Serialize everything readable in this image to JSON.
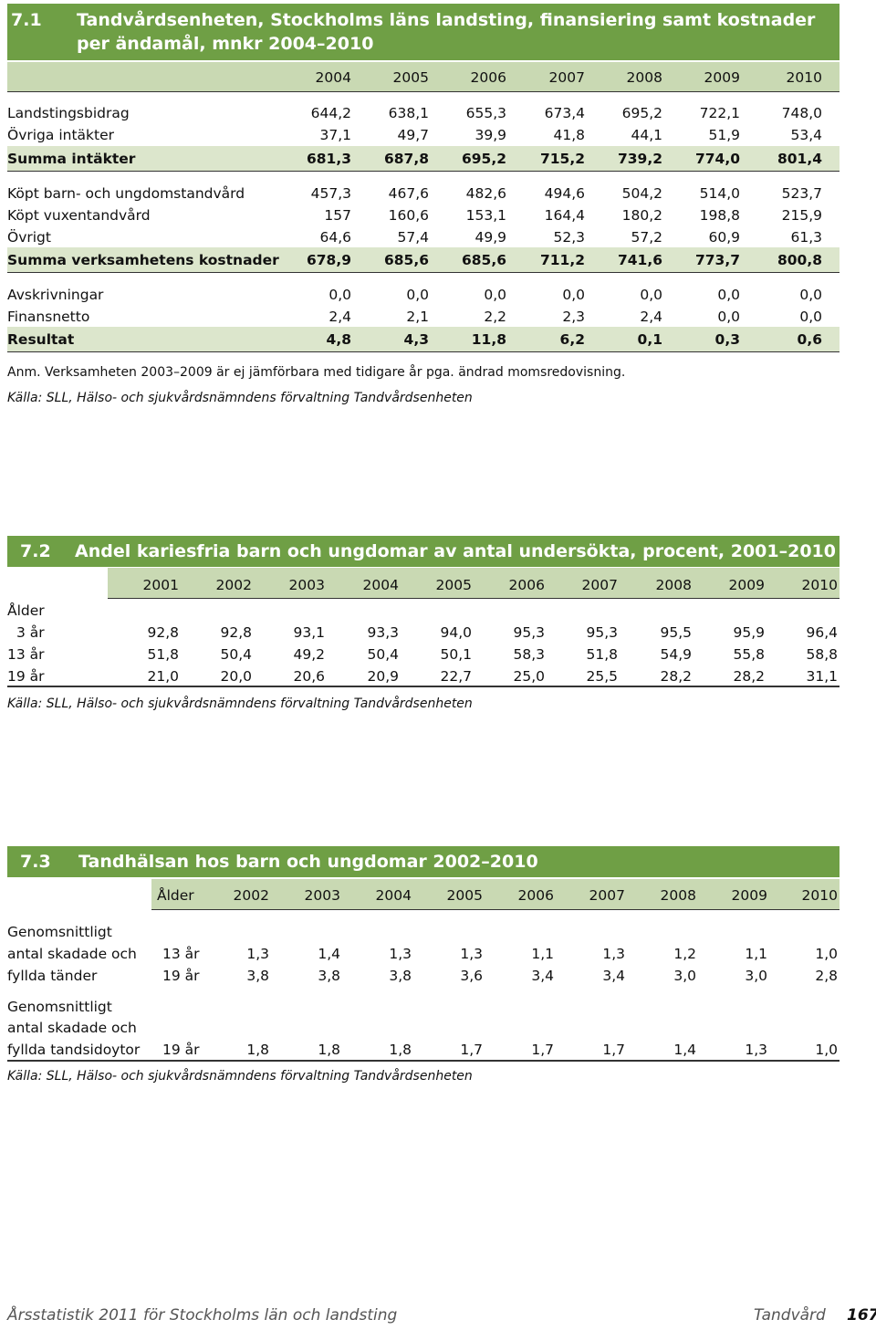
{
  "table1": {
    "number": "7.1",
    "title_line1": "Tandvårdsenheten, Stockholms läns landsting, finansiering samt kostnader",
    "title_line2": "per ändamål, mnkr 2004–2010",
    "years": [
      "2004",
      "2005",
      "2006",
      "2007",
      "2008",
      "2009",
      "2010"
    ],
    "rows": [
      {
        "label": "Landstingsbidrag",
        "values": [
          "644,2",
          "638,1",
          "655,3",
          "673,4",
          "695,2",
          "722,1",
          "748,0"
        ],
        "kind": "normal"
      },
      {
        "label": "Övriga intäkter",
        "values": [
          "37,1",
          "49,7",
          "39,9",
          "41,8",
          "44,1",
          "51,9",
          "53,4"
        ],
        "kind": "normal"
      },
      {
        "label": "Summa intäkter",
        "values": [
          "681,3",
          "687,8",
          "695,2",
          "715,2",
          "739,2",
          "774,0",
          "801,4"
        ],
        "kind": "sum"
      },
      {
        "label": "Köpt barn- och ungdomstandvård",
        "values": [
          "457,3",
          "467,6",
          "482,6",
          "494,6",
          "504,2",
          "514,0",
          "523,7"
        ],
        "kind": "normal"
      },
      {
        "label": "Köpt vuxentandvård",
        "values": [
          "157",
          "160,6",
          "153,1",
          "164,4",
          "180,2",
          "198,8",
          "215,9"
        ],
        "kind": "normal"
      },
      {
        "label": "Övrigt",
        "values": [
          "64,6",
          "57,4",
          "49,9",
          "52,3",
          "57,2",
          "60,9",
          "61,3"
        ],
        "kind": "normal"
      },
      {
        "label": "Summa verksamhetens kostnader",
        "values": [
          "678,9",
          "685,6",
          "685,6",
          "711,2",
          "741,6",
          "773,7",
          "800,8"
        ],
        "kind": "sum"
      },
      {
        "label": "Avskrivningar",
        "values": [
          "0,0",
          "0,0",
          "0,0",
          "0,0",
          "0,0",
          "0,0",
          "0,0"
        ],
        "kind": "normal"
      },
      {
        "label": "Finansnetto",
        "values": [
          "2,4",
          "2,1",
          "2,2",
          "2,3",
          "2,4",
          "0,0",
          "0,0"
        ],
        "kind": "normal"
      },
      {
        "label": "Resultat",
        "values": [
          "4,8",
          "4,3",
          "11,8",
          "6,2",
          "0,1",
          "0,3",
          "0,6"
        ],
        "kind": "sum"
      }
    ],
    "note": "Anm. Verksamheten 2003–2009 är ej jämförbara med tidigare år pga. ändrad momsredovisning.",
    "source": "Källa: SLL, Hälso- och sjukvårdsnämndens förvaltning Tandvårdsenheten"
  },
  "table2": {
    "number": "7.2",
    "title": "Andel kariesfria barn och ungdomar av antal undersökta, procent, 2001–2010",
    "years": [
      "2001",
      "2002",
      "2003",
      "2004",
      "2005",
      "2006",
      "2007",
      "2008",
      "2009",
      "2010"
    ],
    "group_label": "Ålder",
    "rows": [
      {
        "label": "3 år",
        "values": [
          "92,8",
          "92,8",
          "93,1",
          "93,3",
          "94,0",
          "95,3",
          "95,3",
          "95,5",
          "95,9",
          "96,4"
        ]
      },
      {
        "label": "13 år",
        "values": [
          "51,8",
          "50,4",
          "49,2",
          "50,4",
          "50,1",
          "58,3",
          "51,8",
          "54,9",
          "55,8",
          "58,8"
        ]
      },
      {
        "label": "19 år",
        "values": [
          "21,0",
          "20,0",
          "20,6",
          "20,9",
          "22,7",
          "25,0",
          "25,5",
          "28,2",
          "28,2",
          "31,1"
        ]
      }
    ],
    "source": "Källa: SLL, Hälso- och sjukvårdsnämndens förvaltning Tandvårdsenheten"
  },
  "table3": {
    "number": "7.3",
    "title": "Tandhälsan hos barn och ungdomar 2002–2010",
    "age_header": "Ålder",
    "years": [
      "2002",
      "2003",
      "2004",
      "2005",
      "2006",
      "2007",
      "2008",
      "2009",
      "2010"
    ],
    "group1_label": [
      "Genomsnittligt",
      "antal skadade och",
      "fyllda tänder"
    ],
    "group1_rows": [
      {
        "age": "13 år",
        "values": [
          "1,3",
          "1,4",
          "1,3",
          "1,3",
          "1,1",
          "1,3",
          "1,2",
          "1,1",
          "1,0"
        ]
      },
      {
        "age": "19 år",
        "values": [
          "3,8",
          "3,8",
          "3,8",
          "3,6",
          "3,4",
          "3,4",
          "3,0",
          "3,0",
          "2,8"
        ]
      }
    ],
    "group2_label": [
      "Genomsnittligt",
      "antal skadade och",
      "fyllda tandsidoytor"
    ],
    "group2_rows": [
      {
        "age": "19 år",
        "values": [
          "1,8",
          "1,8",
          "1,8",
          "1,7",
          "1,7",
          "1,7",
          "1,4",
          "1,3",
          "1,0"
        ]
      }
    ],
    "source": "Källa: SLL, Hälso- och sjukvårdsnämndens förvaltning Tandvårdsenheten"
  },
  "footer": {
    "publication": "Årsstatistik 2011 för Stockholms län och landsting",
    "chapter": "Tandvård",
    "page": "167"
  },
  "colors": {
    "title_bg": "#6f9f45",
    "header_bg": "#c9d9b3",
    "sum_bg": "#dce6cc"
  }
}
